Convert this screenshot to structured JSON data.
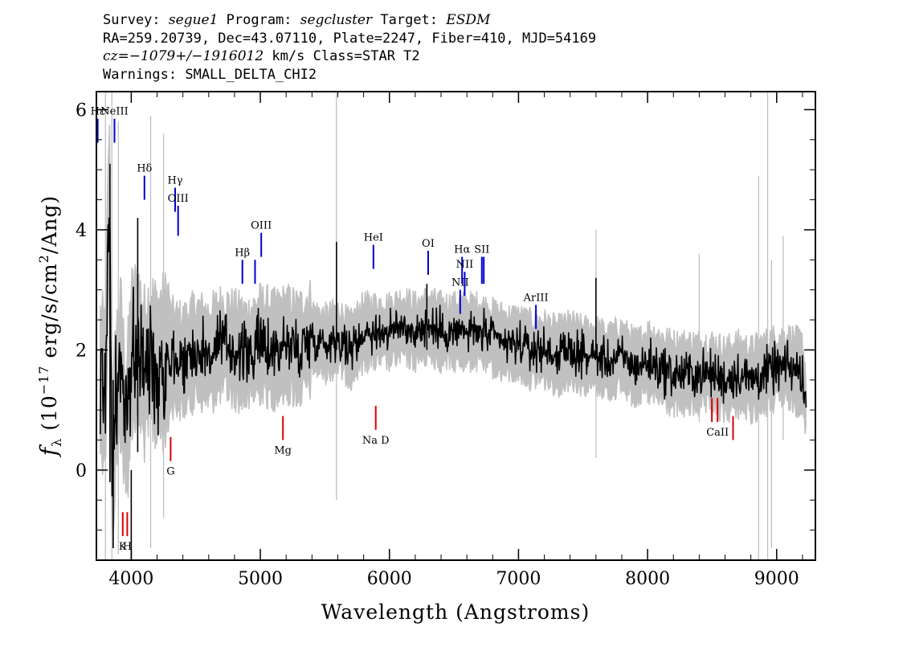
{
  "header": {
    "survey_label": "Survey:",
    "survey": "segue1",
    "program_label": "Program:",
    "program": "segcluster",
    "target_label": "Target:",
    "target": "ESDM",
    "line2": "RA=259.20739, Dec=43.07110, Plate=2247, Fiber=410, MJD=54169",
    "cz": "cz=−1079+/−1916012",
    "cz_rest": " km/s Class=STAR T2",
    "warnings": "Warnings: SMALL_DELTA_CHI2"
  },
  "colors": {
    "flux": "#000000",
    "error_band": "#c0c0c0",
    "emission_line": "#0000cc",
    "absorption_line": "#dd0000"
  },
  "chart_data": {
    "type": "line",
    "title": "",
    "xlabel": "Wavelength (Angstroms)",
    "ylabel": "f_λ (10^-17 erg/s/cm^2/Ang)",
    "xlim": [
      3730,
      9300
    ],
    "ylim": [
      -1.5,
      6.3
    ],
    "x_ticks": [
      4000,
      5000,
      6000,
      7000,
      8000,
      9000
    ],
    "y_ticks": [
      0,
      2,
      4,
      6
    ],
    "grid": false,
    "series": [
      {
        "role": "flux",
        "x": [
          3760,
          3800,
          3830,
          3850,
          3880,
          3920,
          3960,
          4000,
          4050,
          4100,
          4150,
          4200,
          4300,
          4400,
          4500,
          4600,
          4700,
          4800,
          4900,
          5000,
          5100,
          5200,
          5300,
          5400,
          5500,
          5600,
          5700,
          5800,
          5900,
          6000,
          6100,
          6200,
          6300,
          6400,
          6500,
          6600,
          6700,
          6800,
          6900,
          7000,
          7100,
          7200,
          7300,
          7400,
          7500,
          7600,
          7700,
          7800,
          7900,
          8000,
          8100,
          8200,
          8300,
          8400,
          8500,
          8600,
          8700,
          8800,
          8900,
          9000,
          9100,
          9200,
          9230
        ],
        "y": [
          1.5,
          1.4,
          4.9,
          -0.2,
          1.2,
          1.8,
          0.5,
          1.9,
          2.1,
          1.6,
          1.9,
          1.7,
          1.9,
          1.8,
          2.0,
          1.9,
          2.1,
          2.0,
          1.9,
          2.1,
          2.0,
          2.1,
          2.0,
          2.2,
          2.1,
          2.2,
          2.0,
          2.3,
          2.3,
          2.3,
          2.4,
          2.3,
          2.4,
          2.3,
          2.3,
          2.3,
          2.3,
          2.2,
          2.1,
          2.1,
          2.0,
          2.0,
          1.9,
          2.0,
          1.9,
          1.9,
          1.8,
          1.9,
          1.7,
          1.8,
          1.7,
          1.6,
          1.6,
          1.6,
          1.6,
          1.5,
          1.6,
          1.5,
          1.6,
          1.7,
          1.7,
          1.6,
          1.0
        ]
      }
    ],
    "line_markers": [
      {
        "label": "Hε",
        "x": 3740,
        "y_top": 5.85,
        "y_bottom": 5.45,
        "kind": "emission"
      },
      {
        "label": "NeIII",
        "x": 3870,
        "y_top": 5.85,
        "y_bottom": 5.45,
        "kind": "emission"
      },
      {
        "label": "Hδ",
        "x": 4102,
        "y_top": 4.9,
        "y_bottom": 4.5,
        "kind": "emission"
      },
      {
        "label": "Hγ",
        "x": 4340,
        "y_top": 4.7,
        "y_bottom": 4.3,
        "kind": "emission"
      },
      {
        "label": "OIII",
        "x": 4363,
        "y_top": 4.4,
        "y_bottom": 3.9,
        "kind": "emission"
      },
      {
        "label": "Hβ",
        "x": 4861,
        "y_top": 3.5,
        "y_bottom": 3.1,
        "kind": "emission"
      },
      {
        "label": "",
        "x": 4959,
        "y_top": 3.5,
        "y_bottom": 3.1,
        "kind": "emission"
      },
      {
        "label": "OIII",
        "x": 5007,
        "y_top": 3.95,
        "y_bottom": 3.55,
        "kind": "emission"
      },
      {
        "label": "HeI",
        "x": 5876,
        "y_top": 3.75,
        "y_bottom": 3.35,
        "kind": "emission"
      },
      {
        "label": "OI",
        "x": 6300,
        "y_top": 3.65,
        "y_bottom": 3.25,
        "kind": "emission"
      },
      {
        "label": "NII",
        "x": 6548,
        "y_top": 3.0,
        "y_bottom": 2.6,
        "kind": "emission"
      },
      {
        "label": "Hα",
        "x": 6563,
        "y_top": 3.55,
        "y_bottom": 3.1,
        "kind": "emission"
      },
      {
        "label": "NII",
        "x": 6583,
        "y_top": 3.3,
        "y_bottom": 2.9,
        "kind": "emission"
      },
      {
        "label": "SII",
        "x": 6716,
        "y_top": 3.55,
        "y_bottom": 3.1,
        "kind": "emission"
      },
      {
        "label": "",
        "x": 6731,
        "y_top": 3.55,
        "y_bottom": 3.1,
        "kind": "emission"
      },
      {
        "label": "ArIII",
        "x": 7135,
        "y_top": 2.75,
        "y_bottom": 2.35,
        "kind": "emission"
      },
      {
        "label": "K",
        "x": 3934,
        "y_top": -0.7,
        "y_bottom": -1.1,
        "kind": "absorption"
      },
      {
        "label": "H",
        "x": 3969,
        "y_top": -0.7,
        "y_bottom": -1.1,
        "kind": "absorption"
      },
      {
        "label": "G",
        "x": 4305,
        "y_top": 0.55,
        "y_bottom": 0.15,
        "kind": "absorption"
      },
      {
        "label": "Mg",
        "x": 5175,
        "y_top": 0.9,
        "y_bottom": 0.5,
        "kind": "absorption"
      },
      {
        "label": "Na D",
        "x": 5894,
        "y_top": 1.07,
        "y_bottom": 0.67,
        "kind": "absorption"
      },
      {
        "label": "",
        "x": 8498,
        "y_top": 1.2,
        "y_bottom": 0.8,
        "kind": "absorption"
      },
      {
        "label": "CaII",
        "x": 8542,
        "y_top": 1.2,
        "y_bottom": 0.8,
        "kind": "absorption"
      },
      {
        "label": "",
        "x": 8662,
        "y_top": 0.9,
        "y_bottom": 0.5,
        "kind": "absorption"
      }
    ]
  }
}
